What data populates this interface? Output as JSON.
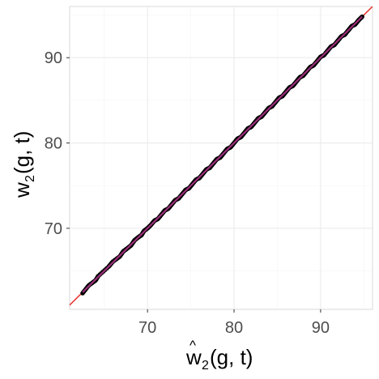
{
  "chart_data": {
    "type": "scatter",
    "title": "",
    "xlabel": {
      "main": "w",
      "hat": "^",
      "sub": "2",
      "args": "(g, t)"
    },
    "ylabel": {
      "main": "w",
      "sub": "2",
      "args": "(g, t)"
    },
    "xlim": [
      61.0,
      96.0
    ],
    "ylim": [
      60.5,
      96.0
    ],
    "x_ticks": [
      70,
      80,
      90
    ],
    "y_ticks": [
      70,
      80,
      90
    ],
    "x_tick_labels": [
      "70",
      "80",
      "90"
    ],
    "y_tick_labels": [
      "70",
      "80",
      "90"
    ],
    "grid": true,
    "reference_line": {
      "type": "identity",
      "slope": 1,
      "intercept": 0,
      "color": "#e8312c"
    },
    "fit_line": {
      "color": "#9b2f7a",
      "x_range": [
        62.5,
        94.8
      ]
    },
    "point_color": "#000000",
    "points": {
      "x": [
        62.5,
        63.2,
        64.0,
        64.3,
        65.5,
        66.0,
        66.8,
        67.2,
        67.6,
        68.1,
        68.5,
        69.0,
        69.3,
        69.6,
        70.0,
        70.4,
        70.8,
        71.2,
        71.6,
        72.0,
        72.4,
        72.8,
        73.2,
        73.6,
        74.0,
        74.4,
        74.8,
        75.2,
        75.6,
        76.0,
        76.4,
        76.8,
        77.2,
        77.6,
        78.0,
        78.4,
        78.8,
        79.2,
        79.6,
        80.0,
        80.4,
        80.8,
        81.2,
        81.6,
        82.0,
        82.4,
        82.8,
        83.2,
        83.6,
        84.0,
        84.4,
        84.8,
        85.2,
        85.6,
        86.0,
        86.4,
        86.8,
        87.2,
        87.6,
        88.0,
        88.4,
        88.8,
        89.2,
        89.6,
        90.0,
        90.4,
        90.8,
        91.2,
        91.6,
        92.0,
        92.4,
        92.8,
        93.2,
        93.6,
        94.0,
        94.4,
        94.8
      ],
      "y": [
        62.4,
        63.3,
        63.9,
        64.4,
        65.5,
        66.1,
        66.7,
        67.3,
        67.6,
        68.0,
        68.6,
        69.0,
        69.2,
        69.7,
        70.0,
        70.4,
        70.9,
        71.1,
        71.6,
        72.1,
        72.3,
        72.8,
        73.3,
        73.5,
        74.0,
        74.5,
        74.7,
        75.2,
        75.7,
        75.9,
        76.4,
        76.9,
        77.1,
        77.6,
        78.1,
        78.3,
        78.8,
        79.3,
        79.5,
        80.0,
        80.5,
        80.7,
        81.2,
        81.7,
        81.9,
        82.4,
        82.9,
        83.1,
        83.6,
        84.1,
        84.3,
        84.8,
        85.3,
        85.5,
        86.0,
        86.5,
        86.7,
        87.2,
        87.7,
        87.9,
        88.4,
        88.9,
        89.1,
        89.6,
        90.1,
        90.3,
        90.8,
        91.3,
        91.5,
        92.0,
        92.5,
        92.7,
        93.2,
        93.7,
        93.9,
        94.4,
        94.8
      ]
    }
  }
}
